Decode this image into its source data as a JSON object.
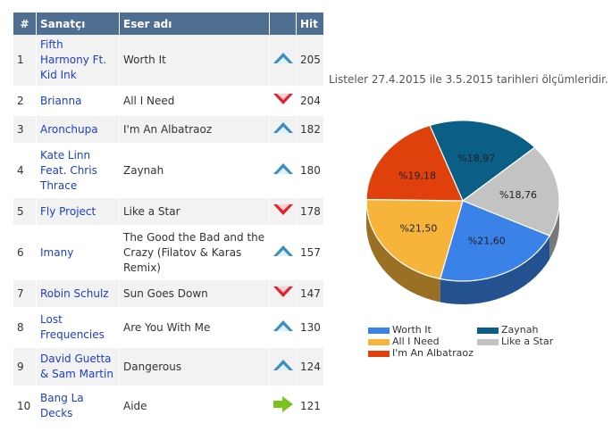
{
  "table": {
    "headers": {
      "rank": "#",
      "artist": "Sanatçı",
      "song": "Eser adı",
      "trend": "",
      "hit": "Hit"
    },
    "rows": [
      {
        "rank": "1",
        "artist": "Fifth Harmony Ft. Kid Ink",
        "song": "Worth It",
        "trend": "up",
        "hit": "205"
      },
      {
        "rank": "2",
        "artist": "Brianna",
        "song": "All I Need",
        "trend": "down",
        "hit": "204"
      },
      {
        "rank": "3",
        "artist": "Aronchupa",
        "song": "I'm An Albatraoz",
        "trend": "up",
        "hit": "182"
      },
      {
        "rank": "4",
        "artist": "Kate Linn Feat. Chris Thrace",
        "song": "Zaynah",
        "trend": "up",
        "hit": "180"
      },
      {
        "rank": "5",
        "artist": "Fly Project",
        "song": "Like a Star",
        "trend": "down",
        "hit": "178"
      },
      {
        "rank": "6",
        "artist": "Imany",
        "song": "The Good the Bad and the Crazy (Filatov & Karas Remix)",
        "trend": "up",
        "hit": "157"
      },
      {
        "rank": "7",
        "artist": "Robin Schulz",
        "song": "Sun Goes Down",
        "trend": "down",
        "hit": "147"
      },
      {
        "rank": "8",
        "artist": "Lost Frequencies",
        "song": "Are You With Me",
        "trend": "up",
        "hit": "130"
      },
      {
        "rank": "9",
        "artist": "David Guetta & Sam Martin",
        "song": "Dangerous",
        "trend": "up",
        "hit": "124"
      },
      {
        "rank": "10",
        "artist": "Bang La Decks",
        "song": "Aide",
        "trend": "right",
        "hit": "121"
      }
    ]
  },
  "note": "Listeler 27.4.2015 ile 3.5.2015 tarihleri ölçümleridir.",
  "chart_data": {
    "type": "pie",
    "title": "",
    "slices": [
      {
        "name": "Zaynah",
        "value": 18.97,
        "label": "%18,97",
        "color": "#0b5f86"
      },
      {
        "name": "Like a Star",
        "value": 18.76,
        "label": "%18,76",
        "color": "#c3c3c3"
      },
      {
        "name": "Worth It",
        "value": 21.6,
        "label": "%21,60",
        "color": "#3a82e8"
      },
      {
        "name": "All I Need",
        "value": 21.5,
        "label": "%21,50",
        "color": "#f7b43a"
      },
      {
        "name": "I'm An Albatraoz",
        "value": 19.18,
        "label": "%19,18",
        "color": "#e0400b"
      }
    ],
    "legend_position": "bottom"
  }
}
